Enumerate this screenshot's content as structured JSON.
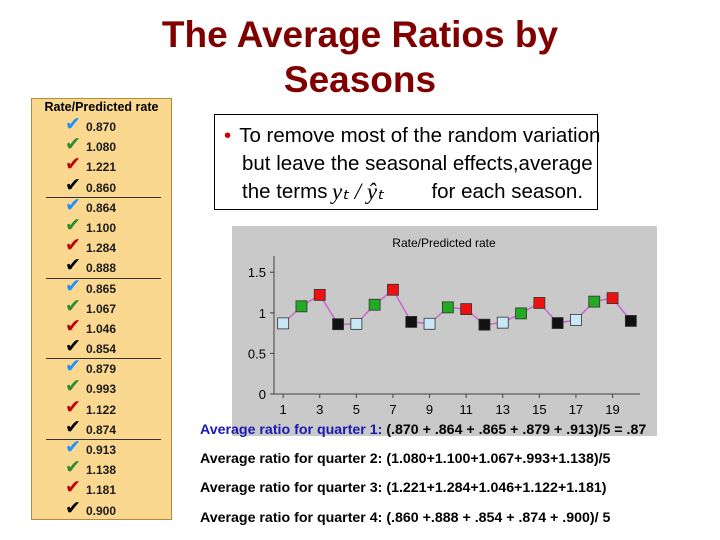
{
  "title": "The Average Ratios by Seasons",
  "sidebar": {
    "header": "Rate/Predicted rate",
    "values": [
      "0.870",
      "1.080",
      "1.221",
      "0.860",
      "0.864",
      "1.100",
      "1.284",
      "0.888",
      "0.865",
      "1.067",
      "1.046",
      "0.854",
      "0.879",
      "0.993",
      "1.122",
      "0.874",
      "0.913",
      "1.138",
      "1.181",
      "0.900"
    ],
    "check_colors": [
      "#1e90ff",
      "#2e8b2e",
      "#c00000",
      "#000000"
    ],
    "separators_after": [
      3,
      7,
      11,
      15
    ]
  },
  "bullet": {
    "line1": "To remove most of the random variation",
    "line2": "but leave the seasonal effects,average",
    "line3_pre": "the terms",
    "line3_post": "for each season.",
    "formula": "yₜ / ŷₜ"
  },
  "chart_data": {
    "type": "line",
    "title": "Rate/Predicted rate",
    "x": [
      1,
      2,
      3,
      4,
      5,
      6,
      7,
      8,
      9,
      10,
      11,
      12,
      13,
      14,
      15,
      16,
      17,
      18,
      19,
      20
    ],
    "xticks": [
      "1",
      "3",
      "5",
      "7",
      "9",
      "11",
      "13",
      "15",
      "17",
      "19"
    ],
    "series": [
      {
        "values": [
          0.87,
          1.08,
          1.221,
          0.86,
          0.864,
          1.1,
          1.284,
          0.888,
          0.865,
          1.067,
          1.046,
          0.854,
          0.879,
          0.993,
          1.122,
          0.874,
          0.913,
          1.138,
          1.181,
          0.9
        ]
      }
    ],
    "quarter_colors": [
      "#c8e8f8",
      "#22aa22",
      "#ee1111",
      "#111111"
    ],
    "line_color": "#cc66cc",
    "ylim": [
      0,
      1.7
    ],
    "yticks": [
      "0",
      "0.5",
      "1",
      "1.5"
    ],
    "grid": false
  },
  "averages": [
    {
      "label": "Average ratio for quarter 1:",
      "formula": "(.870 + .864 + .865 + .879 + .913)/5 = .87"
    },
    {
      "label": "Average ratio for quarter 2:",
      "formula": "(1.080+1.100+1.067+.993+1.138)/5"
    },
    {
      "label": "Average ratio for quarter 3:",
      "formula": "(1.221+1.284+1.046+1.122+1.181)"
    },
    {
      "label": "Average ratio for quarter 4:",
      "formula": "(.860 +.888 + .854 + .874 + .900)/ 5"
    }
  ]
}
